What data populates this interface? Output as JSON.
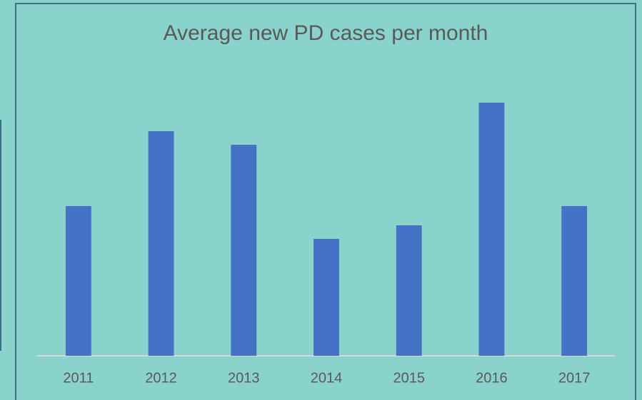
{
  "chart_data": {
    "type": "bar",
    "title": "Average new PD cases per month",
    "categories": [
      "2011",
      "2012",
      "2013",
      "2014",
      "2015",
      "2016",
      "2017"
    ],
    "values": [
      210,
      315,
      296,
      164,
      183,
      355,
      210
    ],
    "color": "#4472c4",
    "ylim": [
      0,
      400
    ]
  }
}
